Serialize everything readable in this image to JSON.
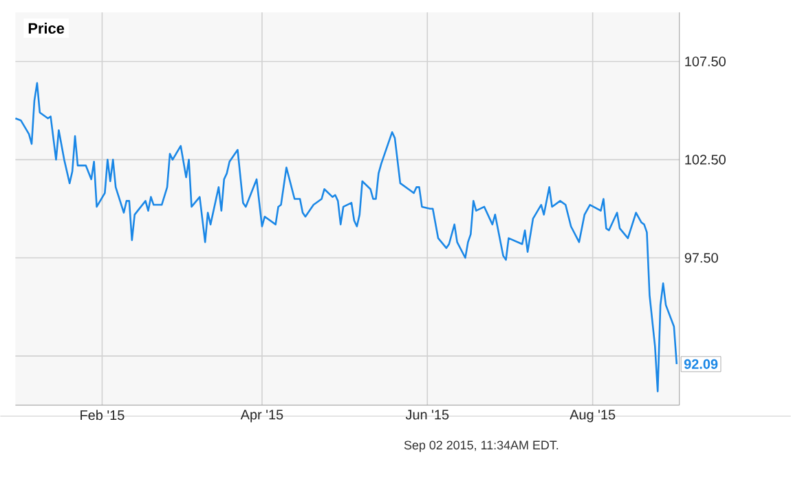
{
  "chart_data": {
    "type": "line",
    "title": "Price",
    "grid": true,
    "color": "#1a87e6",
    "xlim": [
      "2014-12-31",
      "2015-09-02"
    ],
    "xticks": [
      {
        "value": "2015-02-01",
        "label": "Feb '15"
      },
      {
        "value": "2015-04-01",
        "label": "Apr '15"
      },
      {
        "value": "2015-06-01",
        "label": "Jun '15"
      },
      {
        "value": "2015-08-01",
        "label": "Aug '15"
      }
    ],
    "ylim": [
      90,
      110
    ],
    "yticks": [
      {
        "value": 92.5,
        "label": null
      },
      {
        "value": 97.5,
        "label": "97.50"
      },
      {
        "value": 102.5,
        "label": "102.50"
      },
      {
        "value": 107.5,
        "label": "107.50"
      }
    ],
    "x": [
      "2014-12-31",
      "2015-01-02",
      "2015-01-05",
      "2015-01-06",
      "2015-01-07",
      "2015-01-08",
      "2015-01-09",
      "2015-01-12",
      "2015-01-13",
      "2015-01-15",
      "2015-01-16",
      "2015-01-18",
      "2015-01-20",
      "2015-01-21",
      "2015-01-22",
      "2015-01-23",
      "2015-01-26",
      "2015-01-28",
      "2015-01-29",
      "2015-01-30",
      "2015-02-02",
      "2015-02-03",
      "2015-02-04",
      "2015-02-05",
      "2015-02-06",
      "2015-02-09",
      "2015-02-10",
      "2015-02-11",
      "2015-02-12",
      "2015-02-13",
      "2015-02-17",
      "2015-02-18",
      "2015-02-19",
      "2015-02-20",
      "2015-02-23",
      "2015-02-25",
      "2015-02-26",
      "2015-02-27",
      "2015-03-02",
      "2015-03-04",
      "2015-03-05",
      "2015-03-06",
      "2015-03-09",
      "2015-03-11",
      "2015-03-12",
      "2015-03-13",
      "2015-03-16",
      "2015-03-17",
      "2015-03-18",
      "2015-03-19",
      "2015-03-20",
      "2015-03-23",
      "2015-03-25",
      "2015-03-26",
      "2015-03-30",
      "2015-04-01",
      "2015-04-02",
      "2015-04-06",
      "2015-04-07",
      "2015-04-08",
      "2015-04-10",
      "2015-04-13",
      "2015-04-15",
      "2015-04-16",
      "2015-04-17",
      "2015-04-20",
      "2015-04-23",
      "2015-04-24",
      "2015-04-27",
      "2015-04-28",
      "2015-04-29",
      "2015-04-30",
      "2015-05-01",
      "2015-05-04",
      "2015-05-05",
      "2015-05-06",
      "2015-05-07",
      "2015-05-08",
      "2015-05-11",
      "2015-05-12",
      "2015-05-13",
      "2015-05-14",
      "2015-05-15",
      "2015-05-19",
      "2015-05-20",
      "2015-05-22",
      "2015-05-26",
      "2015-05-27",
      "2015-05-28",
      "2015-05-29",
      "2015-05-30",
      "2015-06-02",
      "2015-06-03",
      "2015-06-05",
      "2015-06-08",
      "2015-06-09",
      "2015-06-11",
      "2015-06-12",
      "2015-06-15",
      "2015-06-16",
      "2015-06-17",
      "2015-06-18",
      "2015-06-19",
      "2015-06-22",
      "2015-06-25",
      "2015-06-26",
      "2015-06-29",
      "2015-06-30",
      "2015-07-01",
      "2015-07-06",
      "2015-07-07",
      "2015-07-08",
      "2015-07-10",
      "2015-07-13",
      "2015-07-14",
      "2015-07-16",
      "2015-07-17",
      "2015-07-20",
      "2015-07-22",
      "2015-07-24",
      "2015-07-27",
      "2015-07-29",
      "2015-07-31",
      "2015-08-04",
      "2015-08-05",
      "2015-08-06",
      "2015-08-07",
      "2015-08-10",
      "2015-08-11",
      "2015-08-14",
      "2015-08-17",
      "2015-08-19",
      "2015-08-20",
      "2015-08-21",
      "2015-08-22",
      "2015-08-24",
      "2015-08-25",
      "2015-08-26",
      "2015-08-27",
      "2015-08-28",
      "2015-08-31",
      "2015-09-01"
    ],
    "values": [
      104.6,
      104.5,
      103.8,
      103.3,
      105.5,
      106.4,
      104.9,
      104.6,
      104.7,
      102.5,
      104.0,
      102.5,
      101.3,
      101.9,
      103.7,
      102.2,
      102.2,
      101.5,
      102.4,
      100.1,
      100.8,
      102.5,
      101.4,
      102.5,
      101.1,
      99.8,
      100.4,
      100.4,
      98.4,
      99.7,
      100.4,
      99.9,
      100.6,
      100.2,
      100.2,
      101.1,
      102.8,
      102.5,
      103.2,
      101.6,
      102.5,
      100.1,
      100.6,
      98.3,
      99.8,
      99.2,
      101.1,
      99.9,
      101.5,
      101.8,
      102.4,
      103.0,
      100.3,
      100.1,
      101.5,
      99.1,
      99.6,
      99.2,
      100.1,
      100.2,
      102.1,
      100.5,
      100.5,
      99.8,
      99.6,
      100.2,
      100.5,
      101.0,
      100.6,
      100.7,
      100.4,
      99.2,
      100.1,
      100.3,
      99.4,
      99.1,
      99.7,
      101.4,
      101.0,
      100.5,
      100.5,
      101.8,
      102.3,
      103.9,
      103.6,
      101.3,
      100.9,
      100.8,
      101.1,
      101.1,
      100.1,
      100.0,
      100.0,
      98.5,
      98.0,
      98.2,
      99.2,
      98.3,
      97.5,
      98.3,
      98.7,
      100.4,
      99.9,
      100.1,
      99.2,
      99.7,
      97.6,
      97.4,
      98.5,
      98.2,
      98.9,
      97.8,
      99.5,
      100.2,
      99.7,
      101.1,
      100.1,
      100.4,
      100.2,
      99.1,
      98.3,
      99.7,
      100.2,
      99.9,
      100.5,
      99.0,
      98.9,
      99.8,
      99.0,
      98.5,
      99.8,
      99.3,
      99.2,
      98.8,
      95.6,
      93.0,
      90.7,
      95.1,
      96.2,
      95.1,
      94.0,
      92.09
    ],
    "annotations": [
      {
        "text": "92.09",
        "x": "2015-09-01",
        "y": 92.09
      },
      "Sep 02 2015, 11:34AM EDT."
    ]
  }
}
